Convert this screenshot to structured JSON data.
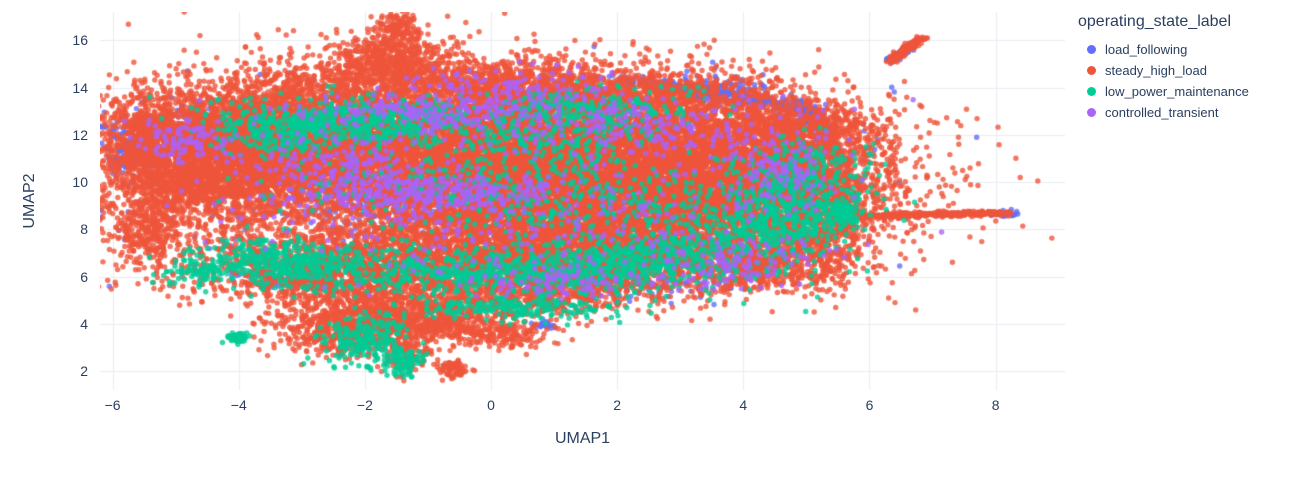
{
  "chart_data": {
    "type": "scatter",
    "title": "",
    "xlabel": "UMAP1",
    "ylabel": "UMAP2",
    "xlim": [
      -6.2,
      9.1
    ],
    "ylim": [
      1.2,
      17.2
    ],
    "xticks": [
      -6,
      -4,
      -2,
      0,
      2,
      4,
      6,
      8
    ],
    "yticks": [
      2,
      4,
      6,
      8,
      10,
      12,
      14,
      16
    ],
    "grid": true,
    "grid_color": "#e9edf2",
    "plot_bgcolor": "#ffffff",
    "text_color": "#2a3f5f",
    "marker_radius": 2.7,
    "marker_opacity": 0.8,
    "legend": {
      "title": "operating_state_label",
      "position": "right"
    },
    "series": [
      {
        "name": "load_following",
        "color": "#636EFA",
        "blobs": [
          {
            "x1": 2.1,
            "y1": 14.35,
            "x2": 4.9,
            "y2": 13.15,
            "jitter": 0.12,
            "n": 280
          },
          {
            "x1": 4.9,
            "y1": 13.15,
            "x2": 5.35,
            "y2": 12.2,
            "jitter": 0.1,
            "n": 120
          },
          {
            "cx": -5.75,
            "cy": 11.4,
            "sx": 0.25,
            "sy": 0.7,
            "n": 160
          },
          {
            "cx": -0.3,
            "cy": 10.3,
            "sx": 2.8,
            "sy": 1.8,
            "n": 700
          },
          {
            "cx": 3.6,
            "cy": 13.9,
            "sx": 0.4,
            "sy": 0.3,
            "n": 120
          },
          {
            "x1": 6.32,
            "y1": 15.12,
            "x2": 6.6,
            "y2": 15.65,
            "jitter": 0.05,
            "n": 70
          },
          {
            "cx": 8.1,
            "cy": 8.65,
            "sx": 0.12,
            "sy": 0.06,
            "n": 40
          },
          {
            "cx": -3.3,
            "cy": 5.9,
            "sx": 0.4,
            "sy": 0.3,
            "n": 70
          },
          {
            "cx": 2.3,
            "cy": 5.6,
            "sx": 0.8,
            "sy": 0.4,
            "n": 80
          },
          {
            "cx": 0.85,
            "cy": 3.95,
            "sx": 0.1,
            "sy": 0.1,
            "n": 25
          },
          {
            "cx": 5.0,
            "cy": 11.3,
            "sx": 0.4,
            "sy": 0.6,
            "n": 120
          },
          {
            "cx": -4.7,
            "cy": 12.4,
            "sx": 0.5,
            "sy": 0.5,
            "n": 100
          },
          {
            "cx": 1.2,
            "cy": 12.6,
            "sx": 1.2,
            "sy": 0.7,
            "n": 150
          },
          {
            "cx": 2.9,
            "cy": 9.2,
            "sx": 1.2,
            "sy": 0.9,
            "n": 150
          },
          {
            "cx": -1.8,
            "cy": 8.9,
            "sx": 0.9,
            "sy": 0.6,
            "n": 120
          }
        ]
      },
      {
        "name": "steady_high_load",
        "color": "#EF553B",
        "blobs": [
          {
            "cx": -0.5,
            "cy": 11.5,
            "sx": 2.2,
            "sy": 1.6,
            "n": 6000
          },
          {
            "cx": 1.5,
            "cy": 9.5,
            "sx": 2.2,
            "sy": 1.6,
            "n": 6000
          },
          {
            "cx": -3.6,
            "cy": 11.8,
            "sx": 1.2,
            "sy": 1.3,
            "n": 3000
          },
          {
            "cx": -4.6,
            "cy": 10.2,
            "sx": 0.8,
            "sy": 1.2,
            "n": 1500
          },
          {
            "cx": 3.8,
            "cy": 10.5,
            "sx": 1.2,
            "sy": 1.5,
            "n": 3000
          },
          {
            "cx": -1.0,
            "cy": 6.8,
            "sx": 2.2,
            "sy": 0.9,
            "n": 2200
          },
          {
            "cx": 1.8,
            "cy": 7.0,
            "sx": 1.5,
            "sy": 0.9,
            "n": 1800
          },
          {
            "cx": -0.5,
            "cy": 14.2,
            "sx": 1.6,
            "sy": 0.55,
            "n": 1200
          },
          {
            "cx": -1.6,
            "cy": 15.3,
            "sx": 0.5,
            "sy": 0.5,
            "n": 400
          },
          {
            "x1": -1.55,
            "y1": 15.8,
            "x2": -1.45,
            "y2": 17.0,
            "jitter": 0.18,
            "n": 150
          },
          {
            "cx": -1.6,
            "cy": 4.6,
            "sx": 0.9,
            "sy": 0.7,
            "n": 900
          },
          {
            "cx": -2.3,
            "cy": 3.6,
            "sx": 0.5,
            "sy": 0.5,
            "n": 350
          },
          {
            "cx": -1.0,
            "cy": 3.9,
            "sx": 0.5,
            "sy": 0.4,
            "n": 250
          },
          {
            "cx": 0.2,
            "cy": 3.6,
            "sx": 0.35,
            "sy": 0.3,
            "n": 150
          },
          {
            "cx": -0.62,
            "cy": 2.1,
            "sx": 0.13,
            "sy": 0.22,
            "n": 70
          },
          {
            "cx": -1.4,
            "cy": 2.6,
            "sx": 0.2,
            "sy": 0.4,
            "n": 100
          },
          {
            "x1": 5.7,
            "y1": 8.55,
            "x2": 8.2,
            "y2": 8.7,
            "jitter": 0.05,
            "n": 350
          },
          {
            "x1": 6.3,
            "y1": 15.1,
            "x2": 6.85,
            "y2": 16.15,
            "jitter": 0.05,
            "n": 160
          },
          {
            "cx": -5.45,
            "cy": 8.0,
            "sx": 0.25,
            "sy": 0.6,
            "n": 250
          },
          {
            "cx": -5.5,
            "cy": 12.0,
            "sx": 0.35,
            "sy": 0.9,
            "n": 350
          },
          {
            "cx": 4.9,
            "cy": 12.3,
            "sx": 0.6,
            "sy": 0.6,
            "n": 500
          },
          {
            "cx": 5.3,
            "cy": 9.5,
            "sx": 0.4,
            "sy": 1.2,
            "n": 500
          },
          {
            "cx": 2.5,
            "cy": 13.5,
            "sx": 1.0,
            "sy": 0.6,
            "n": 700
          },
          {
            "cx": -2.6,
            "cy": 6.0,
            "sx": 0.8,
            "sy": 0.5,
            "n": 400
          },
          {
            "cx": 0.8,
            "cy": 5.2,
            "sx": 0.8,
            "sy": 0.5,
            "n": 400
          },
          {
            "cx": 4.2,
            "cy": 6.3,
            "sx": 0.8,
            "sy": 0.5,
            "n": 350
          },
          {
            "cx": 5.0,
            "cy": 7.5,
            "sx": 0.5,
            "sy": 0.6,
            "n": 300
          }
        ]
      },
      {
        "name": "low_power_maintenance",
        "color": "#00CC96",
        "blobs": [
          {
            "cx": -1.9,
            "cy": 12.6,
            "sx": 1.1,
            "sy": 0.5,
            "n": 500
          },
          {
            "cx": -3.2,
            "cy": 12.2,
            "sx": 0.6,
            "sy": 0.5,
            "n": 250
          },
          {
            "cx": 0.3,
            "cy": 6.3,
            "sx": 1.8,
            "sy": 0.45,
            "n": 800
          },
          {
            "cx": -3.4,
            "cy": 6.6,
            "sx": 0.7,
            "sy": 0.5,
            "n": 350
          },
          {
            "cx": 2.6,
            "cy": 6.9,
            "sx": 1.0,
            "sy": 0.5,
            "n": 350
          },
          {
            "cx": 4.8,
            "cy": 9.6,
            "sx": 0.6,
            "sy": 1.1,
            "n": 450
          },
          {
            "cx": 4.3,
            "cy": 8.0,
            "sx": 0.7,
            "sy": 0.6,
            "n": 250
          },
          {
            "cx": -2.0,
            "cy": 3.2,
            "sx": 0.35,
            "sy": 0.6,
            "n": 220
          },
          {
            "cx": -4.02,
            "cy": 3.42,
            "sx": 0.1,
            "sy": 0.1,
            "n": 50
          },
          {
            "cx": 0.4,
            "cy": 4.7,
            "sx": 0.9,
            "sy": 0.3,
            "n": 220
          },
          {
            "cx": 1.6,
            "cy": 13.1,
            "sx": 0.9,
            "sy": 0.45,
            "n": 250
          },
          {
            "cx": -0.3,
            "cy": 9.7,
            "sx": 1.6,
            "sy": 0.9,
            "n": 280
          },
          {
            "cx": 5.55,
            "cy": 8.7,
            "sx": 0.15,
            "sy": 0.25,
            "n": 70
          },
          {
            "cx": -1.35,
            "cy": 2.3,
            "sx": 0.15,
            "sy": 0.3,
            "n": 70
          },
          {
            "cx": -4.6,
            "cy": 6.2,
            "sx": 0.25,
            "sy": 0.25,
            "n": 60
          },
          {
            "cx": 2.0,
            "cy": 9.0,
            "sx": 1.2,
            "sy": 0.8,
            "n": 200
          },
          {
            "cx": 0.9,
            "cy": 11.6,
            "sx": 0.8,
            "sy": 0.5,
            "n": 150
          }
        ]
      },
      {
        "name": "controlled_transient",
        "color": "#AB63FA",
        "blobs": [
          {
            "cx": -1.1,
            "cy": 9.6,
            "sx": 1.1,
            "sy": 0.45,
            "n": 320
          },
          {
            "cx": -0.4,
            "cy": 12.9,
            "sx": 1.3,
            "sy": 0.5,
            "n": 260
          },
          {
            "cx": 2.4,
            "cy": 12.1,
            "sx": 1.4,
            "sy": 0.7,
            "n": 200
          },
          {
            "cx": 0.6,
            "cy": 8.3,
            "sx": 2.2,
            "sy": 1.2,
            "n": 260
          },
          {
            "cx": -4.8,
            "cy": 11.7,
            "sx": 0.4,
            "sy": 0.5,
            "n": 90
          },
          {
            "cx": 3.9,
            "cy": 6.6,
            "sx": 0.7,
            "sy": 0.5,
            "n": 110
          },
          {
            "cx": 1.1,
            "cy": 5.7,
            "sx": 0.8,
            "sy": 0.35,
            "n": 90
          },
          {
            "cx": -2.6,
            "cy": 10.9,
            "sx": 0.8,
            "sy": 0.6,
            "n": 130
          },
          {
            "cx": 4.6,
            "cy": 10.3,
            "sx": 0.5,
            "sy": 0.8,
            "n": 110
          },
          {
            "cx": 0.3,
            "cy": 14.0,
            "sx": 0.9,
            "sy": 0.4,
            "n": 90
          }
        ]
      }
    ]
  }
}
